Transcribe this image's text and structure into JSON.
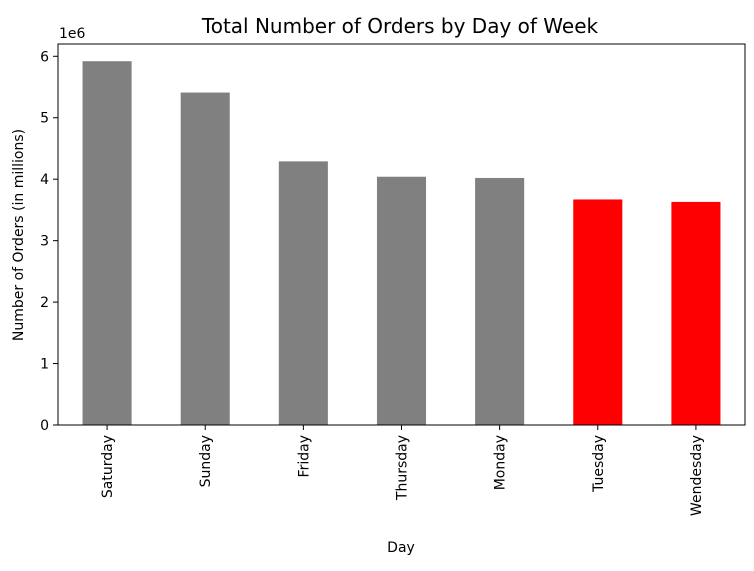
{
  "chart_data": {
    "type": "bar",
    "title": "Total Number of Orders by Day of Week",
    "xlabel": "Day",
    "ylabel": "Number of Orders (in millions)",
    "y_offset_label": "1e6",
    "categories": [
      "Saturday",
      "Sunday",
      "Friday",
      "Thursday",
      "Monday",
      "Tuesday",
      "Wendesday"
    ],
    "values": [
      5.92,
      5.41,
      4.29,
      4.04,
      4.02,
      3.67,
      3.63
    ],
    "bar_colors": [
      "#808080",
      "#808080",
      "#808080",
      "#808080",
      "#808080",
      "#ff0000",
      "#ff0000"
    ],
    "ylim": [
      0,
      6.2
    ],
    "yticks": [
      0,
      1,
      2,
      3,
      4,
      5,
      6
    ],
    "ytick_labels": [
      "0",
      "1",
      "2",
      "3",
      "4",
      "5",
      "6"
    ],
    "grid": false,
    "legend": "none"
  }
}
